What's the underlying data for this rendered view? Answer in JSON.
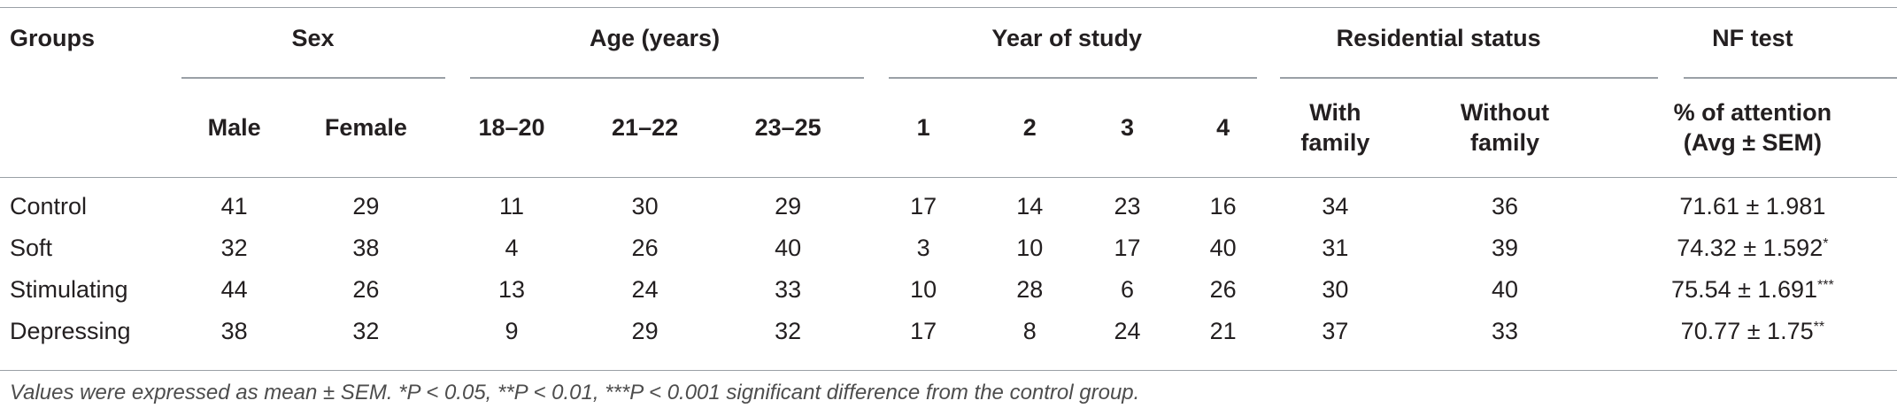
{
  "table": {
    "header_groups": {
      "groups": "Groups",
      "sex": "Sex",
      "age": "Age (years)",
      "year": "Year of study",
      "residential": "Residential status",
      "nf": "NF test"
    },
    "subheaders": {
      "male": "Male",
      "female": "Female",
      "age_18_20": "18–20",
      "age_21_22": "21–22",
      "age_23_25": "23–25",
      "year_1": "1",
      "year_2": "2",
      "year_3": "3",
      "year_4": "4",
      "with_family_1": "With",
      "with_family_2": "family",
      "without_family_1": "Without",
      "without_family_2": "family",
      "attention_1": "% of attention",
      "attention_2": "(Avg ± SEM)"
    },
    "rows": [
      {
        "group": "Control",
        "male": "41",
        "female": "29",
        "a1": "11",
        "a2": "30",
        "a3": "29",
        "y1": "17",
        "y2": "14",
        "y3": "23",
        "y4": "16",
        "with": "34",
        "without": "36",
        "nf": "71.61 ± 1.981",
        "sig": ""
      },
      {
        "group": "Soft",
        "male": "32",
        "female": "38",
        "a1": "4",
        "a2": "26",
        "a3": "40",
        "y1": "3",
        "y2": "10",
        "y3": "17",
        "y4": "40",
        "with": "31",
        "without": "39",
        "nf": "74.32 ± 1.592",
        "sig": "*"
      },
      {
        "group": "Stimulating",
        "male": "44",
        "female": "26",
        "a1": "13",
        "a2": "24",
        "a3": "33",
        "y1": "10",
        "y2": "28",
        "y3": "6",
        "y4": "26",
        "with": "30",
        "without": "40",
        "nf": "75.54 ± 1.691",
        "sig": "***"
      },
      {
        "group": "Depressing",
        "male": "38",
        "female": "32",
        "a1": "9",
        "a2": "29",
        "a3": "32",
        "y1": "17",
        "y2": "8",
        "y3": "24",
        "y4": "21",
        "with": "37",
        "without": "33",
        "nf": "70.77 ± 1.75",
        "sig": "**"
      }
    ]
  },
  "footnote": "Values were expressed as mean ± SEM. *P < 0.05, **P < 0.01, ***P < 0.001 significant difference from the control group."
}
